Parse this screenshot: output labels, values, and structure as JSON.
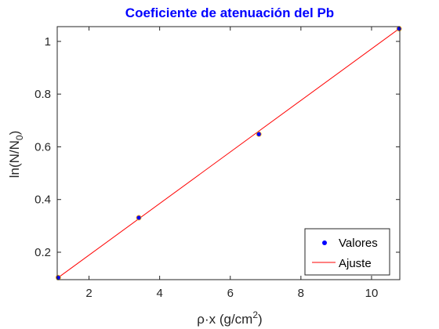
{
  "chart_data": {
    "type": "scatter",
    "title": "Coeficiente de atenuación del Pb",
    "xlabel": {
      "prefix": "ρ·x (g/cm",
      "sup": "2",
      "suffix": ")"
    },
    "ylabel": {
      "prefix": "ln(N/N",
      "sub": "0",
      "suffix": ")"
    },
    "xlim": [
      1.1,
      10.8
    ],
    "ylim": [
      0.096,
      1.056
    ],
    "xticks": [
      2,
      4,
      6,
      8,
      10
    ],
    "yticks": [
      0.2,
      0.4,
      0.6,
      0.8,
      1.0
    ],
    "xtick_labels": [
      "2",
      "4",
      "6",
      "8",
      "10"
    ],
    "ytick_labels": [
      "0.2",
      "0.4",
      "0.6",
      "0.8",
      "1"
    ],
    "grid": false,
    "legend_position": "bottom-right",
    "series": [
      {
        "name": "Valores",
        "kind": "points",
        "color": "#0000ff",
        "x": [
          1.13,
          3.41,
          6.81,
          10.78
        ],
        "y": [
          0.104,
          0.331,
          0.648,
          1.048
        ]
      },
      {
        "name": "Ajuste",
        "kind": "line",
        "color": "#ff0000",
        "x": [
          1.13,
          10.78
        ],
        "y": [
          0.104,
          1.048
        ]
      }
    ]
  }
}
